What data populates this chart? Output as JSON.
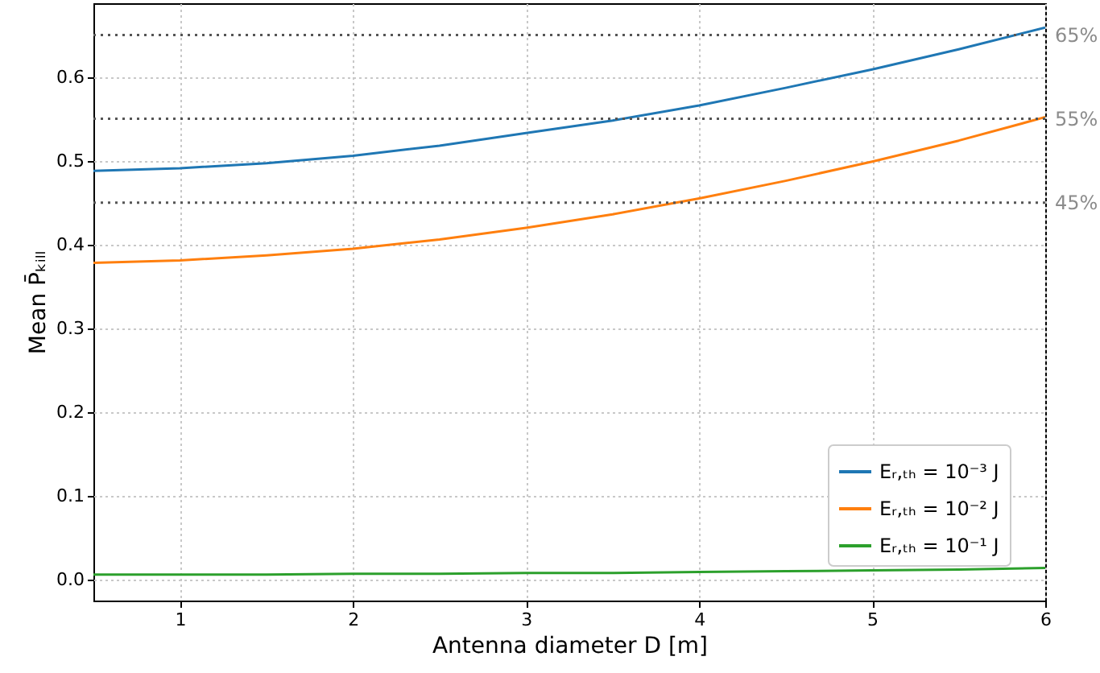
{
  "chart_data": {
    "type": "line",
    "xlabel": "Antenna diameter D [m]",
    "ylabel": "Mean P̄ₖᵢₗₗ",
    "x": [
      0.5,
      1,
      1.5,
      2,
      2.5,
      3,
      3.5,
      4,
      4.5,
      5,
      5.5,
      6
    ],
    "series": [
      {
        "name": "Eᵣ,ₜₕ = 10⁻³ J",
        "color": "#1f77b4",
        "values": [
          0.488,
          0.491,
          0.497,
          0.506,
          0.518,
          0.533,
          0.548,
          0.566,
          0.587,
          0.609,
          0.633,
          0.659
        ]
      },
      {
        "name": "Eᵣ,ₜₕ = 10⁻² J",
        "color": "#ff7f0e",
        "values": [
          0.378,
          0.381,
          0.387,
          0.395,
          0.406,
          0.42,
          0.436,
          0.455,
          0.476,
          0.499,
          0.524,
          0.552
        ]
      },
      {
        "name": "Eᵣ,ₜₕ = 10⁻¹ J",
        "color": "#2ca02c",
        "values": [
          0.006,
          0.006,
          0.006,
          0.007,
          0.007,
          0.008,
          0.008,
          0.009,
          0.01,
          0.011,
          0.012,
          0.014
        ]
      }
    ],
    "xlim": [
      0.5,
      6
    ],
    "xticks": [
      1,
      2,
      3,
      4,
      5,
      6
    ],
    "ylim": [
      -0.025,
      0.688
    ],
    "yticks": [
      {
        "value": 0,
        "label": "0.0"
      },
      {
        "value": 0.1,
        "label": "0.1"
      },
      {
        "value": 0.2,
        "label": "0.2"
      },
      {
        "value": 0.3,
        "label": "0.3"
      },
      {
        "value": 0.4,
        "label": "0.4"
      },
      {
        "value": 0.5,
        "label": "0.5"
      },
      {
        "value": 0.6,
        "label": "0.6"
      }
    ],
    "ref_lines": [
      {
        "axis": "y",
        "value": 0.65,
        "label": "65%",
        "color": "#555555",
        "line_style": "dotted"
      },
      {
        "axis": "y",
        "value": 0.55,
        "label": "55%",
        "color": "#555555",
        "line_style": "dotted"
      },
      {
        "axis": "y",
        "value": 0.45,
        "label": "45%",
        "color": "#555555",
        "line_style": "dotted"
      }
    ],
    "grid": true,
    "legend": "bottom right",
    "line_style": "solid",
    "marker": "none"
  }
}
